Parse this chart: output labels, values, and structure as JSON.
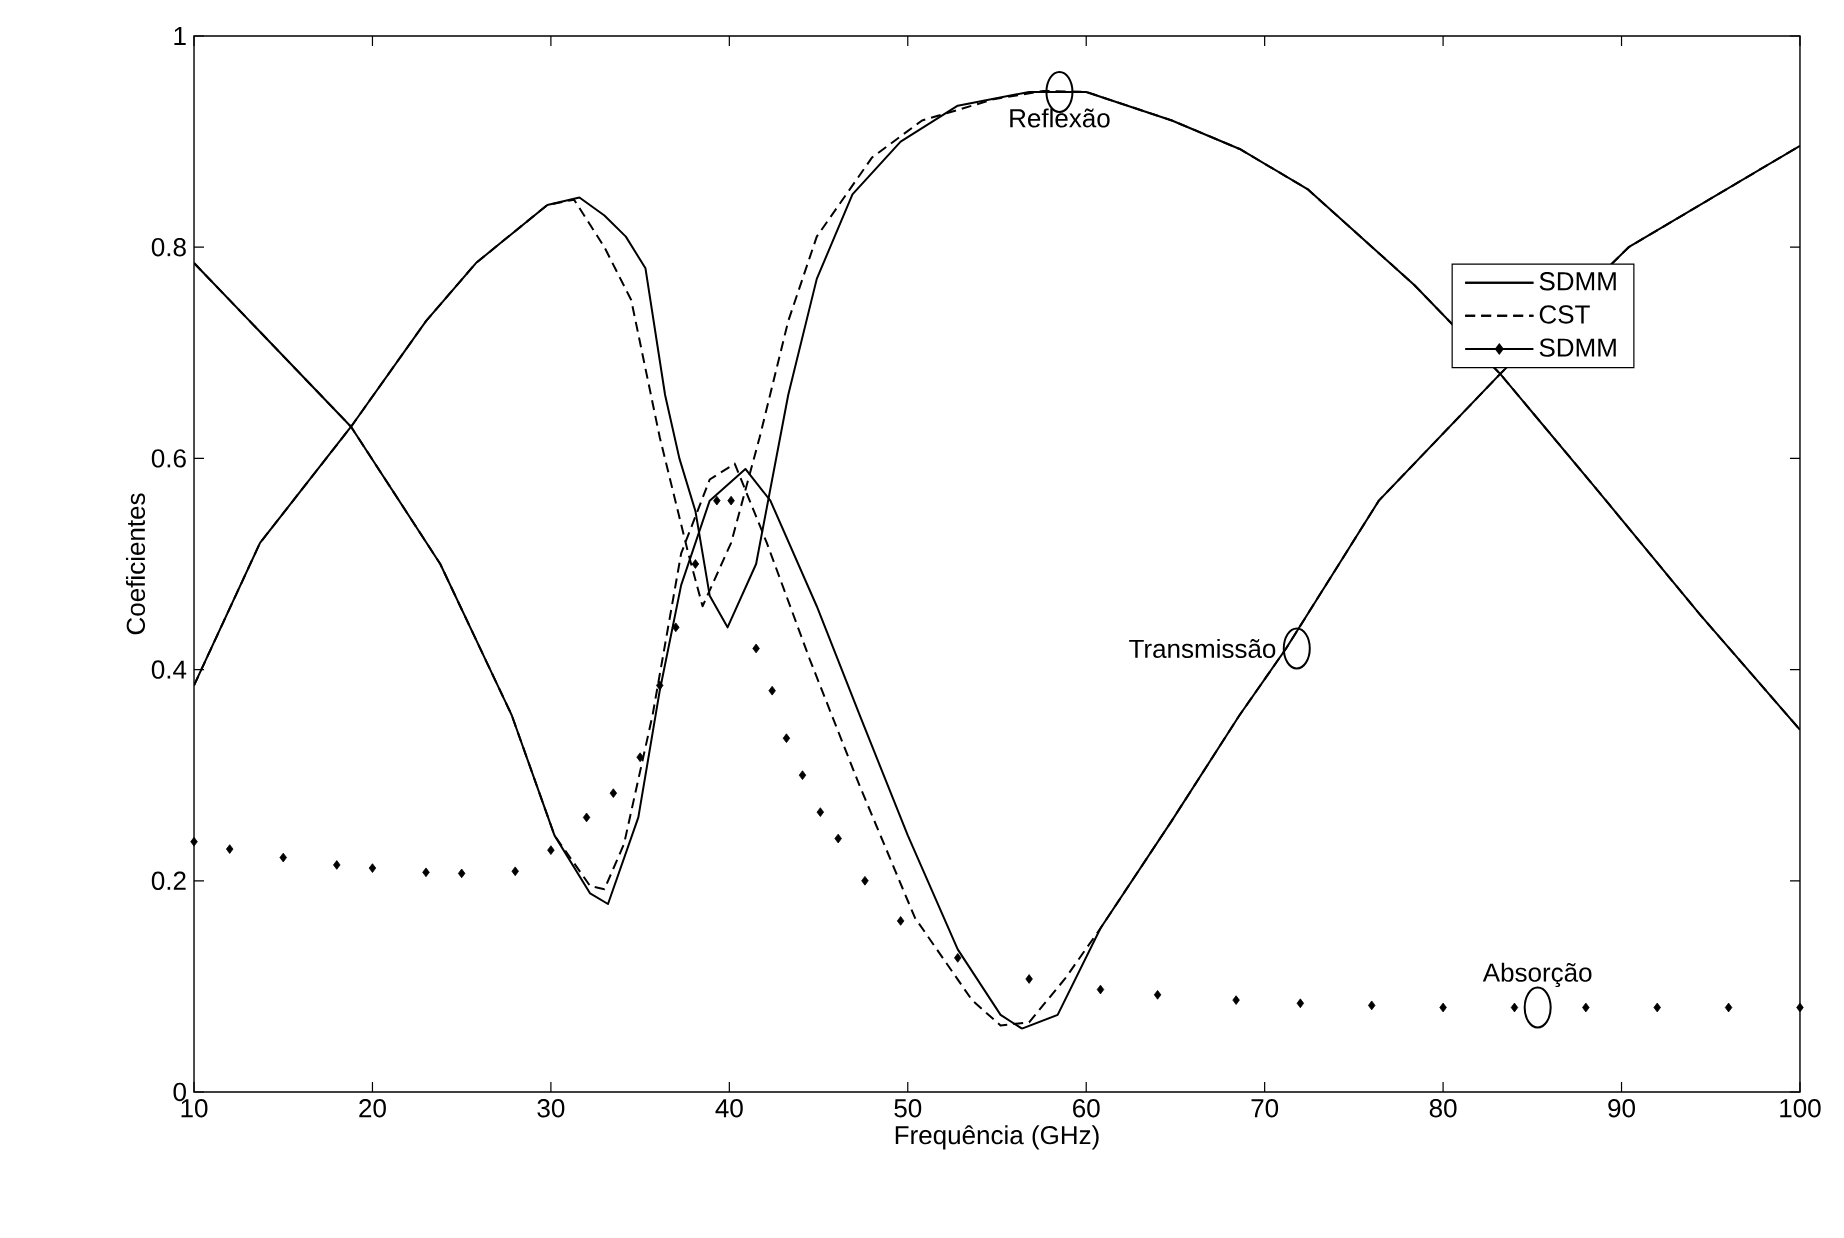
{
  "chart_data": {
    "type": "line",
    "xlabel": "Frequência (GHz)",
    "ylabel": "Coeficientes",
    "xlim": [
      10,
      100
    ],
    "ylim": [
      0,
      1
    ],
    "xticks": [
      10,
      20,
      30,
      40,
      50,
      60,
      70,
      80,
      90,
      100
    ],
    "yticks": [
      0,
      0.2,
      0.4,
      0.6,
      0.8,
      1
    ],
    "grid": false,
    "legend": "right",
    "series": [
      {
        "name": "SDMM",
        "color": "#000000",
        "line_style": "solid",
        "x": [
          10,
          13.7,
          18.8,
          23,
          25.8,
          29.8,
          31.6,
          33,
          34.2,
          35.3,
          36.4,
          37.2,
          38.1,
          38.9,
          39.9,
          41.5,
          43.3,
          44.9,
          46.9,
          49.6,
          52.8,
          56.8,
          60,
          64.8,
          68.6,
          72.4,
          78.4,
          83.2,
          88.4,
          94.4,
          100
        ],
        "values": [
          0.385,
          0.52,
          0.63,
          0.73,
          0.785,
          0.84,
          0.847,
          0.83,
          0.81,
          0.78,
          0.66,
          0.6,
          0.55,
          0.47,
          0.44,
          0.5,
          0.66,
          0.77,
          0.85,
          0.9,
          0.934,
          0.947,
          0.947,
          0.92,
          0.893,
          0.855,
          0.764,
          0.68,
          0.575,
          0.452,
          0.343
        ]
      },
      {
        "name": "CST",
        "color": "#000000",
        "line_style": "dashed",
        "x": [
          10,
          13.7,
          18.8,
          23,
          25.8,
          29.8,
          31.3,
          33,
          34.5,
          36.1,
          37.7,
          38.5,
          40.1,
          41.7,
          43.3,
          44.9,
          48,
          50.8,
          54.8,
          57.6,
          60,
          64.8,
          68.6,
          72.4,
          78.4,
          83.2,
          88.4,
          94.4,
          100
        ],
        "values": [
          0.385,
          0.52,
          0.63,
          0.73,
          0.785,
          0.84,
          0.845,
          0.8,
          0.75,
          0.62,
          0.51,
          0.46,
          0.52,
          0.62,
          0.73,
          0.81,
          0.885,
          0.92,
          0.94,
          0.948,
          0.947,
          0.92,
          0.893,
          0.855,
          0.764,
          0.68,
          0.575,
          0.452,
          0.343
        ]
      },
      {
        "name": "SDMM",
        "color": "#000000",
        "type": "scatter",
        "marker": "diamond",
        "x": [
          10,
          12,
          15,
          18,
          20,
          23,
          25,
          28,
          30,
          32,
          33.5,
          35,
          36.1,
          37,
          38.1,
          39.3,
          40.1,
          41.5,
          42.4,
          43.2,
          44.1,
          45.1,
          46.1,
          47.6,
          49.6,
          52.8,
          56.8,
          60.8,
          64,
          68.4,
          72,
          76,
          80,
          84,
          88,
          92,
          96,
          100
        ],
        "values": [
          0.237,
          0.23,
          0.222,
          0.215,
          0.212,
          0.208,
          0.207,
          0.209,
          0.229,
          0.26,
          0.283,
          0.317,
          0.385,
          0.44,
          0.5,
          0.56,
          0.56,
          0.42,
          0.38,
          0.335,
          0.3,
          0.265,
          0.24,
          0.2,
          0.162,
          0.127,
          0.107,
          0.097,
          0.092,
          0.087,
          0.084,
          0.082,
          0.08,
          0.08,
          0.08,
          0.08,
          0.08,
          0.08
        ]
      },
      {
        "color": "#000000",
        "line_style": "solid",
        "x": [
          10,
          18.8,
          23.8,
          27.8,
          30.2,
          32.2,
          33.2,
          34.9,
          36.1,
          37.3,
          38.9,
          40.9,
          42.3,
          44.9,
          47.3,
          50,
          52.8,
          55.2,
          56.4,
          58.4,
          60.8,
          64.8,
          68.6,
          71.2,
          76.4,
          83.2,
          90.4,
          100
        ],
        "values": [
          0.785,
          0.63,
          0.5,
          0.357,
          0.243,
          0.188,
          0.178,
          0.26,
          0.38,
          0.48,
          0.56,
          0.59,
          0.56,
          0.46,
          0.357,
          0.243,
          0.135,
          0.073,
          0.06,
          0.073,
          0.155,
          0.257,
          0.357,
          0.42,
          0.56,
          0.68,
          0.8,
          0.896
        ]
      },
      {
        "color": "#000000",
        "line_style": "dashed",
        "x": [
          10,
          18.8,
          23.8,
          27.8,
          30.2,
          32.2,
          33,
          34.1,
          35.7,
          37.3,
          38.9,
          40.3,
          42.1,
          44.5,
          47.3,
          50.4,
          53.6,
          55.2,
          56.8,
          58.8,
          60.8,
          64.8,
          68.6,
          71.2,
          76.4,
          83.2,
          90.4,
          100
        ],
        "values": [
          0.785,
          0.63,
          0.5,
          0.357,
          0.243,
          0.195,
          0.192,
          0.235,
          0.357,
          0.51,
          0.58,
          0.595,
          0.52,
          0.41,
          0.29,
          0.165,
          0.087,
          0.063,
          0.066,
          0.107,
          0.155,
          0.257,
          0.357,
          0.42,
          0.56,
          0.68,
          0.8,
          0.896
        ]
      }
    ],
    "annotations": [
      {
        "text": "Reflexão",
        "x": 58.5,
        "y": 0.947
      },
      {
        "text": "Transmissão",
        "x": 71.8,
        "y": 0.42
      },
      {
        "text": "Absorção",
        "x": 85.3,
        "y": 0.08
      }
    ]
  }
}
